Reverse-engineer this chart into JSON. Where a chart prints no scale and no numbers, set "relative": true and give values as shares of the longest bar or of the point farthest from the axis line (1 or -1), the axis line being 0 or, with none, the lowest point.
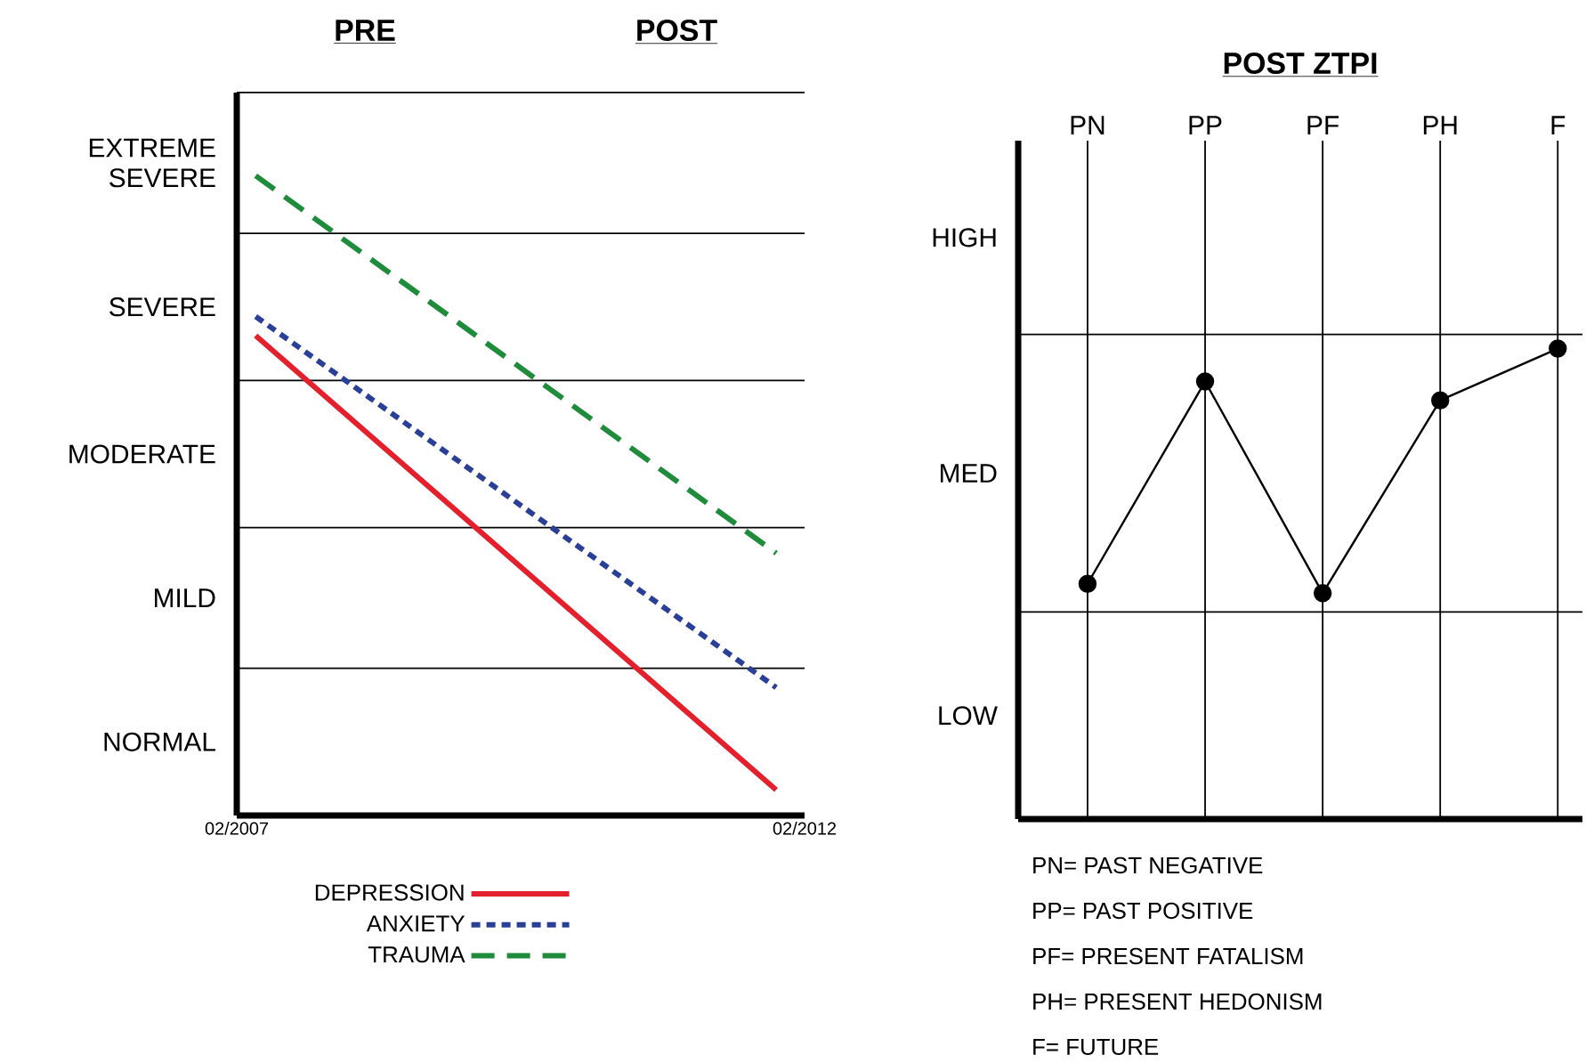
{
  "chart_data": [
    {
      "type": "line",
      "relative": true,
      "x": [
        "2007-04",
        "2011-11"
      ],
      "xlim": [
        "2007-02",
        "2012-02"
      ],
      "xticks": [
        {
          "value": "2007-02",
          "label": "02/2007"
        },
        {
          "value": "2012-02",
          "label": "02/2012"
        }
      ],
      "series": [
        {
          "name": "DEPRESSION",
          "color": "#e3202b",
          "values": [
            0.75,
            0.04
          ],
          "line_style": "solid"
        },
        {
          "name": "ANXIETY",
          "color": "#2a3f96",
          "values": [
            0.78,
            0.2
          ],
          "line_style": "dotted"
        },
        {
          "name": "TRAUMA",
          "color": "#1e8c3a",
          "values": [
            1.0,
            0.41
          ],
          "line_style": "dashed"
        }
      ],
      "ref_lines": [
        {
          "axis": "y",
          "value": 0.23,
          "color": "#000000"
        },
        {
          "axis": "y",
          "value": 0.45,
          "color": "#000000"
        },
        {
          "axis": "y",
          "value": 0.68,
          "color": "#000000"
        },
        {
          "axis": "y",
          "value": 0.91,
          "color": "#000000"
        },
        {
          "axis": "y",
          "value": 1.13,
          "color": "#000000"
        }
      ],
      "annotations": [
        "PRE",
        "POST",
        "NORMAL",
        "MILD",
        "MODERATE",
        "SEVERE",
        "EXTREME SEVERE"
      ],
      "legend": "bottom"
    },
    {
      "type": "line",
      "relative": true,
      "title": "POST ZTPI",
      "categories": [
        "PN",
        "PP",
        "PF",
        "PH",
        "F"
      ],
      "values": [
        0.5,
        0.93,
        0.48,
        0.89,
        1.0
      ],
      "color": "#000000",
      "marker": "circle",
      "line_style": "solid",
      "grid": "x",
      "ref_lines": [
        {
          "axis": "y",
          "value": 0.44,
          "color": "#000000"
        },
        {
          "axis": "y",
          "value": 1.03,
          "color": "#000000"
        }
      ],
      "annotations": [
        "LOW",
        "MED",
        "HIGH",
        "PN= PAST NEGATIVE",
        "PP= PAST POSITIVE",
        "PF= PRESENT FATALISM",
        "PH= PRESENT HEDONISM",
        "F= FUTURE"
      ]
    }
  ]
}
